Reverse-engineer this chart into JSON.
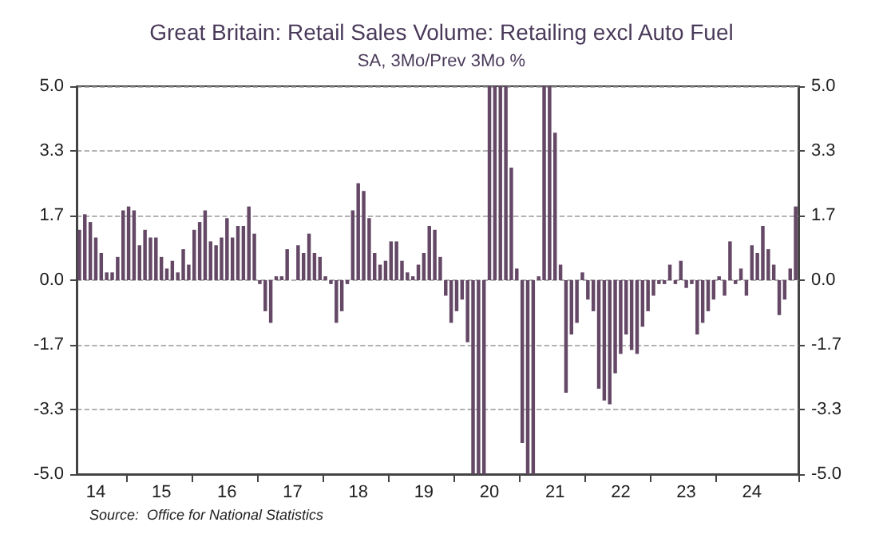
{
  "chart_data": {
    "type": "bar",
    "title": "Great Britain: Retail Sales Volume: Retailing excl Auto Fuel",
    "subtitle": "SA, 3Mo/Prev 3Mo %",
    "annotations": [
      "Source:  Office for National Statistics"
    ],
    "categories": [
      null,
      null,
      null,
      "14",
      null,
      null,
      null,
      null,
      null,
      null,
      null,
      null,
      null,
      null,
      null,
      "15",
      null,
      null,
      null,
      null,
      null,
      null,
      null,
      null,
      null,
      null,
      null,
      "16",
      null,
      null,
      null,
      null,
      null,
      null,
      null,
      null,
      null,
      null,
      null,
      "17",
      null,
      null,
      null,
      null,
      null,
      null,
      null,
      null,
      null,
      null,
      null,
      "18",
      null,
      null,
      null,
      null,
      null,
      null,
      null,
      null,
      null,
      null,
      null,
      "19",
      null,
      null,
      null,
      null,
      null,
      null,
      null,
      null,
      null,
      null,
      null,
      "20",
      null,
      null,
      null,
      null,
      null,
      null,
      null,
      null,
      null,
      null,
      null,
      "21",
      null,
      null,
      null,
      null,
      null,
      null,
      null,
      null,
      null,
      null,
      null,
      "22",
      null,
      null,
      null,
      null,
      null,
      null,
      null,
      null,
      null,
      null,
      null,
      "23",
      null,
      null,
      null,
      null,
      null,
      null,
      null,
      null,
      null,
      null,
      null,
      "24",
      null,
      null,
      null,
      null,
      null,
      null,
      null,
      null
    ],
    "values": [
      1.3,
      1.7,
      1.5,
      1.1,
      0.7,
      0.2,
      0.2,
      0.6,
      1.8,
      1.9,
      1.8,
      0.9,
      1.3,
      1.1,
      1.1,
      0.6,
      0.3,
      0.5,
      0.2,
      0.8,
      0.4,
      1.3,
      1.5,
      1.8,
      1.0,
      0.9,
      1.1,
      1.6,
      1.1,
      1.4,
      1.4,
      1.9,
      1.2,
      -0.1,
      -0.8,
      -1.1,
      0.1,
      0.1,
      0.8,
      0.0,
      0.9,
      0.7,
      1.2,
      0.7,
      0.6,
      0.1,
      -0.1,
      -1.1,
      -0.8,
      -0.1,
      1.8,
      2.5,
      2.3,
      1.6,
      0.7,
      0.4,
      0.5,
      1.0,
      1.0,
      0.5,
      0.2,
      0.1,
      0.4,
      0.7,
      1.4,
      1.3,
      0.6,
      -0.4,
      -1.1,
      -0.8,
      -0.5,
      -1.6,
      -5,
      -5,
      -5,
      5,
      5,
      5,
      5,
      2.9,
      0.3,
      -4.2,
      -5,
      -5,
      0.1,
      5,
      5,
      3.8,
      0.4,
      -2.9,
      -1.4,
      -1.1,
      0.2,
      -0.5,
      -0.8,
      -2.8,
      -3.1,
      -3.2,
      -2.4,
      -1.9,
      -1.4,
      -1.8,
      -1.9,
      -1.2,
      -0.8,
      -0.4,
      -0.1,
      -0.1,
      0.4,
      -0.1,
      0.5,
      -0.2,
      -0.1,
      -1.4,
      -1.1,
      -0.8,
      -0.5,
      0.1,
      -0.4,
      1.0,
      -0.1,
      0.3,
      -0.4,
      0.9,
      0.7,
      1.4,
      0.8,
      0.4,
      -0.9,
      -0.5,
      0.3,
      1.9
    ],
    "color": "#644866",
    "ylim": [
      -5,
      5
    ],
    "yticks": [
      {
        "value": -5,
        "label": "-5.0"
      },
      {
        "value": -3.333,
        "label": "-3.3"
      },
      {
        "value": -1.667,
        "label": "-1.7"
      },
      {
        "value": 0,
        "label": "0.0"
      },
      {
        "value": 1.667,
        "label": "1.7"
      },
      {
        "value": 3.333,
        "label": "3.3"
      },
      {
        "value": 5,
        "label": "5.0"
      }
    ],
    "y2lim": [
      -5,
      5
    ],
    "y2ticks": [
      {
        "value": -5,
        "label": "-5.0"
      },
      {
        "value": -3.333,
        "label": "-3.3"
      },
      {
        "value": -1.667,
        "label": "-1.7"
      },
      {
        "value": 0,
        "label": "0.0"
      },
      {
        "value": 1.667,
        "label": "1.7"
      },
      {
        "value": 3.333,
        "label": "3.3"
      },
      {
        "value": 5,
        "label": "5.0"
      }
    ],
    "grid": "y"
  }
}
